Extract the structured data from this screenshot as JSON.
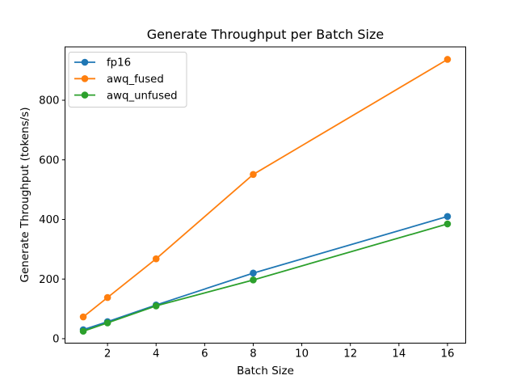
{
  "chart_data": {
    "type": "line",
    "title": "Generate Throughput per Batch Size",
    "xlabel": "Batch Size",
    "ylabel": "Generate Throughput (tokens/s)",
    "x": [
      1,
      2,
      4,
      8,
      16
    ],
    "series": [
      {
        "name": "fp16",
        "color": "#1f77b4",
        "values": [
          30,
          57,
          113,
          220,
          410
        ]
      },
      {
        "name": "awq_fused",
        "color": "#ff7f0e",
        "values": [
          73,
          138,
          268,
          551,
          937
        ]
      },
      {
        "name": "awq_unfused",
        "color": "#2ca02c",
        "values": [
          25,
          53,
          110,
          197,
          385
        ]
      }
    ],
    "xticks": [
      2,
      4,
      6,
      8,
      10,
      12,
      14,
      16
    ],
    "yticks": [
      0,
      200,
      400,
      600,
      800
    ],
    "xlim": [
      0.25,
      16.75
    ],
    "ylim": [
      -15,
      979
    ],
    "grid": false,
    "marker": "o",
    "legend_position": "upper left",
    "spine_color": "#000000",
    "tick_label_color": "#000000",
    "legend_border_color": "#cccccc",
    "background_color": "#ffffff"
  }
}
